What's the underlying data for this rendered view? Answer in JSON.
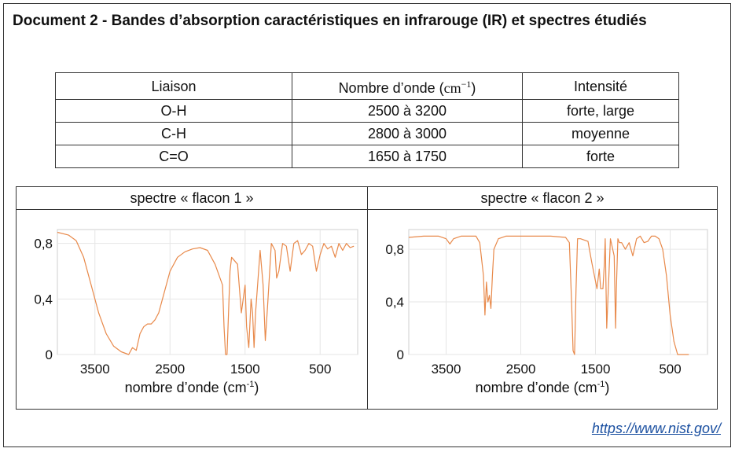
{
  "document": {
    "title": "Document 2 - Bandes d’absorption caractéristiques en infrarouge (IR) et spectres étudiés",
    "source_link": "https://www.nist.gov/"
  },
  "table": {
    "headers": {
      "liaison": "Liaison",
      "nombre_prefix": "Nombre d’onde (",
      "nombre_unit": "cm",
      "nombre_exp": "−1",
      "nombre_suffix": ")",
      "intensite": "Intensité"
    },
    "rows": [
      {
        "liaison": "O-H",
        "nombre": "2500 à 3200",
        "intensite": "forte, large"
      },
      {
        "liaison": "C-H",
        "nombre": "2800 à 3000",
        "intensite": "moyenne"
      },
      {
        "liaison": "C=O",
        "nombre": "1650 à 1750",
        "intensite": "forte"
      }
    ]
  },
  "spectra": {
    "xlabel": "nombre d’onde (cm",
    "xlabel_exp": "-1",
    "xlabel_close": ")"
  },
  "chart_data": [
    {
      "type": "line",
      "title": "spectre « flacon 1 »",
      "xlabel": "nombre d’onde (cm-1)",
      "xlim": [
        4000,
        0
      ],
      "ylim": [
        0,
        0.9
      ],
      "x_ticks": [
        3500,
        2500,
        1500,
        500
      ],
      "x_tick_labels": [
        "3500",
        "2500",
        "1500",
        "500"
      ],
      "y_ticks": [
        0,
        0.4,
        0.8
      ],
      "y_tick_labels": [
        "0",
        "0,4",
        "0,8"
      ],
      "grid": true,
      "color": "#e8894a",
      "x": [
        4000,
        3850,
        3750,
        3650,
        3550,
        3450,
        3350,
        3250,
        3150,
        3050,
        3000,
        2950,
        2900,
        2850,
        2800,
        2750,
        2700,
        2650,
        2600,
        2500,
        2400,
        2300,
        2200,
        2100,
        2000,
        1950,
        1900,
        1800,
        1780,
        1760,
        1740,
        1720,
        1700,
        1680,
        1600,
        1550,
        1500,
        1480,
        1450,
        1420,
        1400,
        1380,
        1360,
        1300,
        1260,
        1230,
        1200,
        1150,
        1100,
        1080,
        1050,
        1000,
        950,
        900,
        850,
        800,
        750,
        700,
        650,
        600,
        550,
        500,
        450,
        400,
        350,
        300,
        250,
        200,
        150,
        100,
        50
      ],
      "values": [
        0.88,
        0.86,
        0.82,
        0.7,
        0.5,
        0.3,
        0.15,
        0.06,
        0.02,
        0.0,
        0.05,
        0.03,
        0.15,
        0.2,
        0.22,
        0.22,
        0.25,
        0.3,
        0.4,
        0.6,
        0.7,
        0.74,
        0.76,
        0.77,
        0.75,
        0.7,
        0.65,
        0.5,
        0.2,
        0.0,
        0.0,
        0.3,
        0.6,
        0.7,
        0.65,
        0.3,
        0.5,
        0.2,
        0.05,
        0.4,
        0.3,
        0.05,
        0.3,
        0.75,
        0.5,
        0.1,
        0.35,
        0.8,
        0.75,
        0.55,
        0.6,
        0.8,
        0.78,
        0.6,
        0.8,
        0.82,
        0.72,
        0.75,
        0.8,
        0.78,
        0.6,
        0.72,
        0.8,
        0.76,
        0.78,
        0.7,
        0.8,
        0.75,
        0.8,
        0.77,
        0.78
      ]
    },
    {
      "type": "line",
      "title": "spectre « flacon 2 »",
      "xlabel": "nombre d’onde (cm-1)",
      "xlim": [
        4000,
        0
      ],
      "ylim": [
        0,
        0.95
      ],
      "x_ticks": [
        3500,
        2500,
        1500,
        500
      ],
      "x_tick_labels": [
        "3500",
        "2500",
        "1500",
        "500"
      ],
      "y_ticks": [
        0,
        0.4,
        0.8
      ],
      "y_tick_labels": [
        "0",
        "0,4",
        "0,8"
      ],
      "grid": true,
      "color": "#e8894a",
      "x": [
        4000,
        3800,
        3600,
        3500,
        3450,
        3400,
        3300,
        3100,
        3050,
        3000,
        2980,
        2960,
        2940,
        2920,
        2900,
        2880,
        2860,
        2800,
        2700,
        2500,
        2300,
        2100,
        1900,
        1850,
        1820,
        1800,
        1780,
        1760,
        1740,
        1700,
        1600,
        1550,
        1480,
        1450,
        1430,
        1400,
        1380,
        1370,
        1350,
        1300,
        1250,
        1230,
        1220,
        1200,
        1180,
        1150,
        1100,
        1050,
        1000,
        950,
        900,
        850,
        800,
        750,
        700,
        650,
        600,
        550,
        500,
        450,
        400,
        380,
        360,
        340,
        300,
        250
      ],
      "values": [
        0.89,
        0.9,
        0.9,
        0.88,
        0.84,
        0.88,
        0.9,
        0.9,
        0.85,
        0.6,
        0.3,
        0.55,
        0.4,
        0.45,
        0.35,
        0.6,
        0.8,
        0.88,
        0.9,
        0.9,
        0.9,
        0.9,
        0.89,
        0.85,
        0.4,
        0.03,
        0.0,
        0.5,
        0.88,
        0.88,
        0.86,
        0.7,
        0.5,
        0.65,
        0.5,
        0.5,
        0.7,
        0.88,
        0.2,
        0.88,
        0.75,
        0.2,
        0.5,
        0.88,
        0.85,
        0.85,
        0.8,
        0.85,
        0.75,
        0.88,
        0.9,
        0.85,
        0.86,
        0.9,
        0.9,
        0.88,
        0.8,
        0.6,
        0.3,
        0.1,
        0.0,
        0.0,
        0.0,
        0.0,
        0.0,
        0.0
      ]
    }
  ]
}
